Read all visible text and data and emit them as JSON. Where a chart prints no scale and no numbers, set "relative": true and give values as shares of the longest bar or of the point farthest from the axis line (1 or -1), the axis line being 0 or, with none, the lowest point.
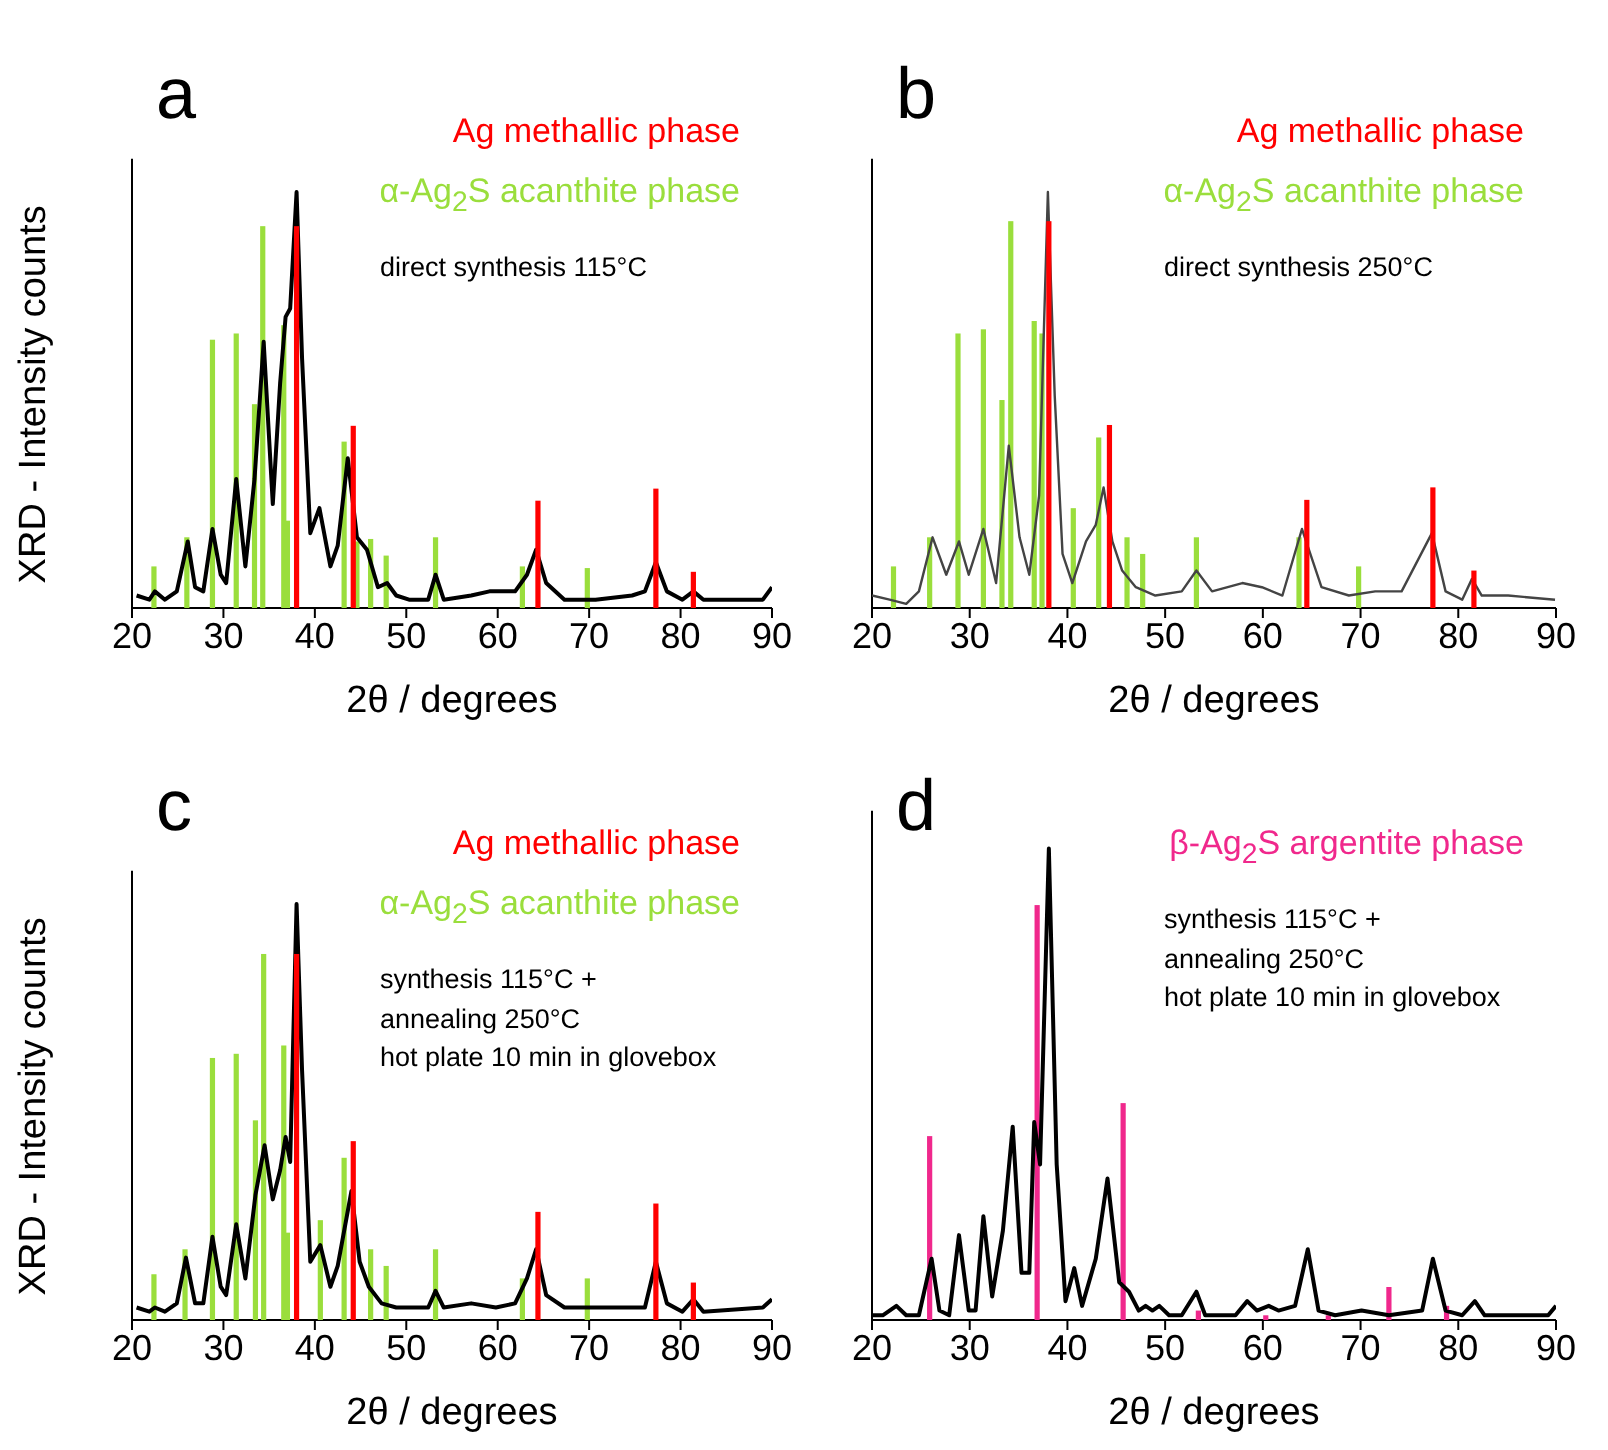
{
  "chart_data": [
    {
      "type": "line",
      "relative": true,
      "xlabel": "2θ / degrees",
      "ylabel": "XRD - Intensity counts",
      "xlim": [
        20,
        90
      ],
      "xticks": [
        20,
        30,
        40,
        50,
        60,
        70,
        80,
        90
      ],
      "tick_labels": "x",
      "legend": "top right",
      "marker": "none",
      "annotations": [
        "a",
        "direct synthesis 115°C"
      ],
      "series": [
        {
          "type": "bar",
          "name": "α-Ag$_{2}$S acanthite phase",
          "color": "#9ade3c",
          "x": [
            22.4,
            26.0,
            28.8,
            31.4,
            33.4,
            34.3,
            36.6,
            37.0,
            43.2,
            44.6,
            46.1,
            47.8,
            53.2,
            62.7,
            69.8
          ],
          "values": [
            0.1,
            0.17,
            0.645,
            0.66,
            0.49,
            0.918,
            0.68,
            0.21,
            0.4,
            0.16,
            0.166,
            0.126,
            0.17,
            0.1,
            0.096
          ]
        },
        {
          "color": "#000000",
          "x": [
            20.5,
            21.9,
            22.5,
            23.6,
            24.9,
            26.1,
            26.9,
            27.8,
            28.8,
            29.7,
            30.3,
            31.4,
            32.4,
            33.4,
            34.4,
            35.4,
            36.2,
            36.8,
            37.3,
            38.0,
            38.6,
            39.5,
            40.5,
            41.7,
            42.5,
            43.6,
            44.6,
            45.7,
            46.9,
            47.9,
            48.9,
            50.3,
            52.4,
            53.2,
            54.1,
            57.1,
            59.1,
            61.9,
            63.2,
            64.2,
            65.3,
            67.3,
            70.7,
            74.7,
            76.1,
            77.3,
            78.5,
            80.2,
            81.4,
            82.5,
            86.3,
            89.0,
            90.0
          ],
          "values": [
            0.03,
            0.02,
            0.04,
            0.02,
            0.04,
            0.16,
            0.05,
            0.04,
            0.19,
            0.08,
            0.06,
            0.31,
            0.1,
            0.31,
            0.64,
            0.25,
            0.54,
            0.7,
            0.72,
            1.0,
            0.6,
            0.18,
            0.24,
            0.1,
            0.15,
            0.36,
            0.17,
            0.14,
            0.05,
            0.06,
            0.03,
            0.02,
            0.02,
            0.08,
            0.02,
            0.03,
            0.04,
            0.04,
            0.08,
            0.14,
            0.06,
            0.02,
            0.02,
            0.03,
            0.04,
            0.11,
            0.04,
            0.02,
            0.04,
            0.02,
            0.02,
            0.02,
            0.05
          ]
        },
        {
          "type": "bar",
          "name": "Ag methallic phase",
          "color": "#ff0000",
          "x": [
            38.0,
            44.2,
            64.4,
            77.3,
            81.4
          ],
          "values": [
            0.918,
            0.438,
            0.258,
            0.287,
            0.087
          ]
        }
      ]
    },
    {
      "type": "line",
      "relative": true,
      "xlabel": "2θ / degrees",
      "xlim": [
        20,
        90
      ],
      "xticks": [
        20,
        30,
        40,
        50,
        60,
        70,
        80,
        90
      ],
      "tick_labels": "x",
      "legend": "top right",
      "marker": "none",
      "annotations": [
        "b",
        "direct synthesis 250°C"
      ],
      "series": [
        {
          "type": "bar",
          "name": "α-Ag$_{2}$S acanthite phase",
          "color": "#9ade3c",
          "x": [
            22.2,
            25.9,
            28.8,
            31.4,
            33.3,
            34.2,
            36.6,
            37.4,
            40.6,
            43.2,
            46.1,
            47.7,
            53.2,
            63.7,
            69.8
          ],
          "values": [
            0.1,
            0.17,
            0.66,
            0.67,
            0.5,
            0.93,
            0.69,
            0.66,
            0.24,
            0.41,
            0.17,
            0.13,
            0.17,
            0.17,
            0.1
          ]
        },
        {
          "color": "#444444",
          "x": [
            20.0,
            21.8,
            23.5,
            24.8,
            26.2,
            27.6,
            28.9,
            29.9,
            31.4,
            32.7,
            34.0,
            35.1,
            36.1,
            37.1,
            38.0,
            38.7,
            39.5,
            40.5,
            41.9,
            42.9,
            43.7,
            44.6,
            45.6,
            47.0,
            49.0,
            51.7,
            53.2,
            54.8,
            57.9,
            59.9,
            62.0,
            64.0,
            66.0,
            68.8,
            71.5,
            74.2,
            77.3,
            78.7,
            80.4,
            81.4,
            82.4,
            85.1,
            89.9
          ],
          "values": [
            0.03,
            0.02,
            0.01,
            0.04,
            0.17,
            0.08,
            0.16,
            0.08,
            0.19,
            0.06,
            0.39,
            0.17,
            0.08,
            0.27,
            1.0,
            0.51,
            0.13,
            0.06,
            0.16,
            0.2,
            0.29,
            0.16,
            0.09,
            0.05,
            0.03,
            0.04,
            0.09,
            0.04,
            0.06,
            0.05,
            0.03,
            0.19,
            0.05,
            0.03,
            0.04,
            0.04,
            0.18,
            0.04,
            0.02,
            0.07,
            0.03,
            0.03,
            0.02
          ]
        },
        {
          "type": "bar",
          "name": "Ag methallic phase",
          "color": "#ff0000",
          "x": [
            38.1,
            44.3,
            64.5,
            77.4,
            81.6
          ],
          "values": [
            0.93,
            0.44,
            0.26,
            0.29,
            0.09
          ]
        }
      ]
    },
    {
      "type": "line",
      "relative": true,
      "xlabel": "2θ / degrees",
      "ylabel": "XRD - Intensity counts",
      "xlim": [
        20,
        90
      ],
      "xticks": [
        20,
        30,
        40,
        50,
        60,
        70,
        80,
        90
      ],
      "tick_labels": "x",
      "legend": "top right",
      "marker": "none",
      "annotations": [
        "c",
        "synthesis 115°C +\nannealing 250°C\nhot plate 10 min in glovebox"
      ],
      "series": [
        {
          "type": "bar",
          "name": "α-Ag$_{2}$S acanthite phase",
          "color": "#9ade3c",
          "x": [
            22.4,
            25.8,
            28.8,
            31.4,
            33.5,
            34.4,
            36.6,
            37.0,
            40.6,
            43.2,
            46.1,
            47.8,
            53.2,
            62.7,
            69.8
          ],
          "values": [
            0.11,
            0.17,
            0.63,
            0.64,
            0.48,
            0.88,
            0.66,
            0.21,
            0.24,
            0.39,
            0.17,
            0.13,
            0.17,
            0.1,
            0.1
          ]
        },
        {
          "color": "#000000",
          "x": [
            20.5,
            21.9,
            22.5,
            23.6,
            24.9,
            25.9,
            26.9,
            27.8,
            28.8,
            29.7,
            30.3,
            31.4,
            32.4,
            33.5,
            34.5,
            35.4,
            36.2,
            36.8,
            37.3,
            38.0,
            38.6,
            39.5,
            40.6,
            41.7,
            42.5,
            44.0,
            44.9,
            45.9,
            47.3,
            48.9,
            52.4,
            53.2,
            54.1,
            57.1,
            59.8,
            61.9,
            63.2,
            64.2,
            65.3,
            67.3,
            72.0,
            76.1,
            77.3,
            78.5,
            80.2,
            81.4,
            82.5,
            89.0,
            90.0
          ],
          "values": [
            0.03,
            0.02,
            0.03,
            0.02,
            0.04,
            0.15,
            0.04,
            0.04,
            0.2,
            0.08,
            0.06,
            0.23,
            0.1,
            0.3,
            0.42,
            0.29,
            0.36,
            0.44,
            0.38,
            1.0,
            0.6,
            0.14,
            0.18,
            0.08,
            0.13,
            0.31,
            0.14,
            0.08,
            0.04,
            0.03,
            0.03,
            0.07,
            0.03,
            0.04,
            0.03,
            0.04,
            0.1,
            0.17,
            0.06,
            0.03,
            0.03,
            0.03,
            0.14,
            0.04,
            0.02,
            0.05,
            0.02,
            0.03,
            0.05
          ]
        },
        {
          "type": "bar",
          "name": "Ag methallic phase",
          "color": "#ff0000",
          "x": [
            38.0,
            44.2,
            64.4,
            77.3,
            81.4
          ],
          "values": [
            0.88,
            0.43,
            0.26,
            0.28,
            0.09
          ]
        }
      ]
    },
    {
      "type": "line",
      "relative": true,
      "xlabel": "2θ / degrees",
      "xlim": [
        20,
        90
      ],
      "xticks": [
        20,
        30,
        40,
        50,
        60,
        70,
        80,
        90
      ],
      "tick_labels": "x",
      "legend": "top right",
      "marker": "none",
      "annotations": [
        "d",
        "synthesis 115°C +\nannealing 250°C\nhot plate 10 min in glovebox"
      ],
      "series": [
        {
          "type": "bar",
          "name": "β-Ag$_{2}$S argentite phase",
          "color": "#f0288c",
          "x": [
            25.9,
            36.9,
            45.7,
            53.4,
            60.3,
            66.7,
            72.9,
            78.8
          ],
          "values": [
            0.39,
            0.88,
            0.46,
            0.02,
            0.01,
            0.01,
            0.07,
            0.03
          ]
        },
        {
          "color": "#000000",
          "x": [
            20.0,
            21.1,
            22.5,
            23.5,
            24.8,
            26.1,
            26.9,
            27.9,
            28.9,
            29.9,
            30.6,
            31.4,
            32.3,
            33.4,
            34.4,
            35.3,
            36.1,
            36.6,
            37.2,
            38.1,
            38.9,
            39.8,
            40.7,
            41.5,
            42.9,
            44.1,
            45.3,
            46.3,
            47.3,
            48.0,
            48.7,
            49.4,
            50.4,
            51.7,
            53.2,
            54.1,
            57.2,
            58.4,
            59.4,
            60.6,
            61.6,
            63.3,
            64.6,
            65.7,
            67.4,
            70.1,
            72.9,
            76.3,
            77.4,
            78.7,
            80.4,
            81.7,
            82.7,
            85.1,
            89.2,
            90.0
          ],
          "values": [
            0.01,
            0.01,
            0.03,
            0.01,
            0.01,
            0.13,
            0.02,
            0.01,
            0.18,
            0.02,
            0.02,
            0.22,
            0.05,
            0.19,
            0.41,
            0.1,
            0.1,
            0.42,
            0.33,
            1.0,
            0.33,
            0.04,
            0.11,
            0.03,
            0.13,
            0.3,
            0.08,
            0.06,
            0.02,
            0.03,
            0.02,
            0.03,
            0.01,
            0.01,
            0.06,
            0.01,
            0.01,
            0.04,
            0.02,
            0.03,
            0.02,
            0.03,
            0.15,
            0.02,
            0.01,
            0.02,
            0.01,
            0.02,
            0.13,
            0.02,
            0.01,
            0.04,
            0.01,
            0.01,
            0.01,
            0.03
          ]
        }
      ]
    }
  ]
}
